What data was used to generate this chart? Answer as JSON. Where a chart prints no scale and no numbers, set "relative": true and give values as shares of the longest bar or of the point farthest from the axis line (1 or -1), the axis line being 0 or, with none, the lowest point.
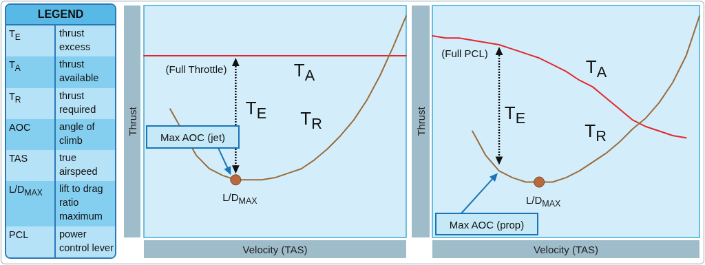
{
  "chart_data": [
    {
      "type": "other",
      "title": "LEGEND",
      "categories": [
        "T$_{E}$",
        "T$_{A}$",
        "T$_{R}$",
        "AOC",
        "TAS",
        "L/D$_{MAX}$",
        "PCL"
      ],
      "annotations": [
        "thrust excess",
        "thrust available",
        "thrust required",
        "angle of climb",
        "true airspeed",
        "lift to drag ratio maximum",
        "power control lever"
      ]
    },
    {
      "type": "line",
      "relative": true,
      "xlabel": "Velocity (TAS)",
      "ylabel": "Thrust",
      "categories": [
        null,
        null,
        null,
        null,
        null,
        null,
        null,
        null,
        null,
        null,
        null,
        null,
        null,
        null,
        null,
        null,
        null,
        null,
        null,
        null,
        null
      ],
      "series": [
        {
          "color": "#e3262d",
          "values": [
            0.82,
            0.82,
            0.82,
            0.82,
            0.82,
            0.82,
            0.82,
            0.82,
            0.82,
            0.82,
            0.82,
            0.82,
            0.82,
            0.82,
            0.82,
            0.82,
            0.82,
            0.82,
            0.82,
            0.82,
            0.82
          ]
        },
        {
          "color": "#9b6b3b",
          "values": [
            null,
            null,
            0.58,
            null,
            0.37,
            0.31,
            0.28,
            0.26,
            0.26,
            0.26,
            0.27,
            0.29,
            0.31,
            0.35,
            0.4,
            0.46,
            0.53,
            0.62,
            0.73,
            0.86,
            1.0
          ]
        }
      ],
      "annotations": [
        "(Full Throttle)",
        "T$_{E}$",
        "Max AOC (jet)",
        "T$_{A}$",
        "T$_{R}$",
        {
          "text": "L/D$_{MAX}$",
          "y": 0.26
        }
      ]
    },
    {
      "type": "line",
      "relative": true,
      "xlabel": "Velocity (TAS)",
      "ylabel": "Thrust",
      "categories": [
        null,
        null,
        null,
        null,
        null,
        null,
        null,
        null,
        null,
        null,
        null,
        null,
        null,
        null,
        null,
        null,
        null,
        null,
        null,
        null,
        null
      ],
      "series": [
        {
          "color": "#e3262d",
          "values": [
            0.91,
            0.9,
            0.9,
            0.89,
            0.88,
            0.87,
            0.85,
            0.83,
            0.81,
            0.78,
            0.75,
            0.71,
            0.68,
            0.63,
            0.58,
            0.53,
            0.5,
            0.48,
            0.46,
            0.45,
            null
          ]
        },
        {
          "color": "#9b6b3b",
          "values": [
            null,
            null,
            null,
            0.48,
            0.37,
            0.3,
            0.27,
            0.25,
            0.25,
            0.25,
            0.27,
            0.3,
            0.34,
            0.38,
            0.43,
            0.49,
            0.54,
            0.61,
            0.7,
            0.82,
            1.0
          ]
        }
      ],
      "annotations": [
        "(Full PCL)",
        "T$_{E}$",
        "Max AOC (prop)",
        "T$_{A}$",
        "T$_{R}$",
        {
          "text": "L/D$_{MAX}$",
          "y": 0.25
        }
      ]
    }
  ]
}
